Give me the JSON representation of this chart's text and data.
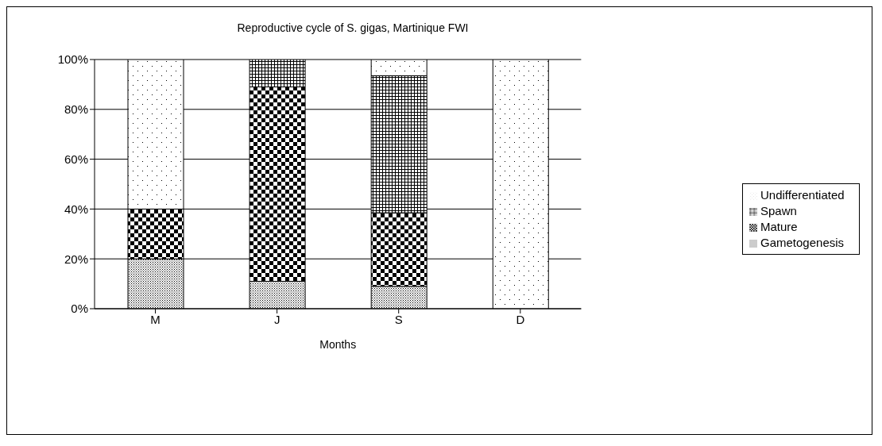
{
  "chart_data": {
    "type": "bar",
    "stacked": true,
    "title": "Reproductive cycle of S. gigas, Martinique FWI",
    "xlabel": "Months",
    "categories": [
      "M",
      "J",
      "S",
      "D"
    ],
    "series": [
      {
        "name": "Gametogenesis",
        "color": "#000000",
        "values": [
          20,
          11,
          9,
          0
        ]
      },
      {
        "name": "Mature",
        "color": "#000000",
        "values": [
          20,
          78,
          29.5,
          0
        ]
      },
      {
        "name": "Spawn",
        "color": "#000000",
        "values": [
          0,
          11,
          55,
          0
        ]
      },
      {
        "name": "Undifferentiated",
        "color": "#000000",
        "values": [
          60,
          0,
          6.5,
          100
        ]
      }
    ],
    "ylim": [
      0,
      100
    ],
    "yticks": [
      {
        "value": 0,
        "label": "0%"
      },
      {
        "value": 20,
        "label": "20%"
      },
      {
        "value": 40,
        "label": "40%"
      },
      {
        "value": 60,
        "label": "60%"
      },
      {
        "value": 80,
        "label": "80%"
      },
      {
        "value": 100,
        "label": "100%"
      }
    ],
    "grid": "y",
    "legend": "right"
  }
}
